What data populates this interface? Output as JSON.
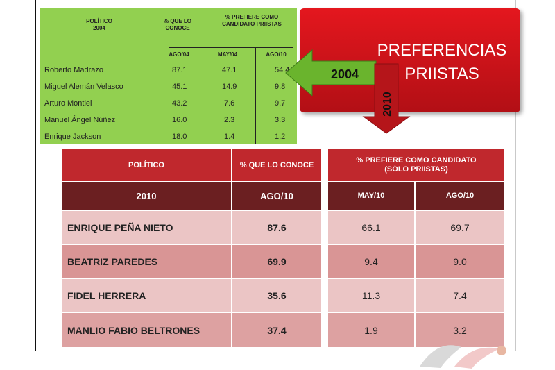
{
  "title": {
    "line1": "PREFERENCIAS",
    "line2": "PRIISTAS"
  },
  "arrows": {
    "left_label": "2004",
    "down_label": "2010"
  },
  "table_2004": {
    "headers": {
      "politico": "POLÍTICO",
      "year": "2004",
      "conoce": "% QUE LO CONOCE",
      "prefiere": "% PREFIERE COMO CANDIDATO PRIISTAS",
      "sub_conoce": "AGO/04",
      "sub_may": "MAY/04",
      "sub_ago": "AGO/10"
    },
    "rows": [
      {
        "name": "Roberto Madrazo",
        "conoce": "87.1",
        "may": "47.1",
        "ago": "54.4"
      },
      {
        "name": "Miguel Alemán Velasco",
        "conoce": "45.1",
        "may": "14.9",
        "ago": "9.8"
      },
      {
        "name": "Arturo Montiel",
        "conoce": "43.2",
        "may": "7.6",
        "ago": "9.7"
      },
      {
        "name": "Manuel Ángel Núñez",
        "conoce": "16.0",
        "may": "2.3",
        "ago": "3.3"
      },
      {
        "name": "Enrique Jackson",
        "conoce": "18.0",
        "may": "1.4",
        "ago": "1.2"
      }
    ]
  },
  "table_2010": {
    "headers": {
      "politico": "POLÍTICO",
      "conoce": "% QUE LO CONOCE",
      "prefiere_line1": "% PREFIERE COMO CANDIDATO",
      "prefiere_line2": "(SÓLO PRIISTAS)",
      "year": "2010",
      "sub_conoce": "AGO/10",
      "sub_may": "MAY/10",
      "sub_ago": "AGO/10"
    },
    "rows": [
      {
        "name": "ENRIQUE PEÑA NIETO",
        "conoce": "87.6",
        "may": "66.1",
        "ago": "69.7"
      },
      {
        "name": "BEATRIZ PAREDES",
        "conoce": "69.9",
        "may": "9.4",
        "ago": "9.0"
      },
      {
        "name": "FIDEL HERRERA",
        "conoce": "35.6",
        "may": "11.3",
        "ago": "7.4"
      },
      {
        "name": "MANLIO FABIO BELTRONES",
        "conoce": "37.4",
        "may": "1.9",
        "ago": "3.2"
      }
    ]
  },
  "chart_data": [
    {
      "type": "table",
      "columns": [
        "POLÍTICO 2004",
        "% QUE LO CONOCE AGO/04",
        "% PREFIERE COMO CANDIDATO PRIISTAS MAY/04",
        "% PREFIERE COMO CANDIDATO PRIISTAS AGO/10"
      ],
      "rows": [
        [
          "Roberto Madrazo",
          87.1,
          47.1,
          54.4
        ],
        [
          "Miguel Alemán Velasco",
          45.1,
          14.9,
          9.8
        ],
        [
          "Arturo Montiel",
          43.2,
          7.6,
          9.7
        ],
        [
          "Manuel Ángel Núñez",
          16.0,
          2.3,
          3.3
        ],
        [
          "Enrique Jackson",
          18.0,
          1.4,
          1.2
        ]
      ]
    },
    {
      "type": "table",
      "columns": [
        "POLÍTICO 2010",
        "% QUE LO CONOCE AGO/10",
        "% PREFIERE COMO CANDIDATO (SÓLO PRIISTAS) MAY/10",
        "% PREFIERE COMO CANDIDATO (SÓLO PRIISTAS) AGO/10"
      ],
      "rows": [
        [
          "ENRIQUE PEÑA NIETO",
          87.6,
          66.1,
          69.7
        ],
        [
          "BEATRIZ PAREDES",
          69.9,
          9.4,
          9.0
        ],
        [
          "FIDEL HERRERA",
          35.6,
          11.3,
          7.4
        ],
        [
          "MANLIO FABIO BELTRONES",
          37.4,
          1.9,
          3.2
        ]
      ]
    }
  ],
  "colors": {
    "title_red": "#e4171e",
    "green_table": "#92d050",
    "header_red": "#c0282d",
    "header_dark": "#6b1f21",
    "row_light": "#ebc5c5",
    "row_medium": "#d99595",
    "arrow_green": "#6ab42d"
  },
  "icons": {
    "logo": "pri-emblem-watermark"
  }
}
